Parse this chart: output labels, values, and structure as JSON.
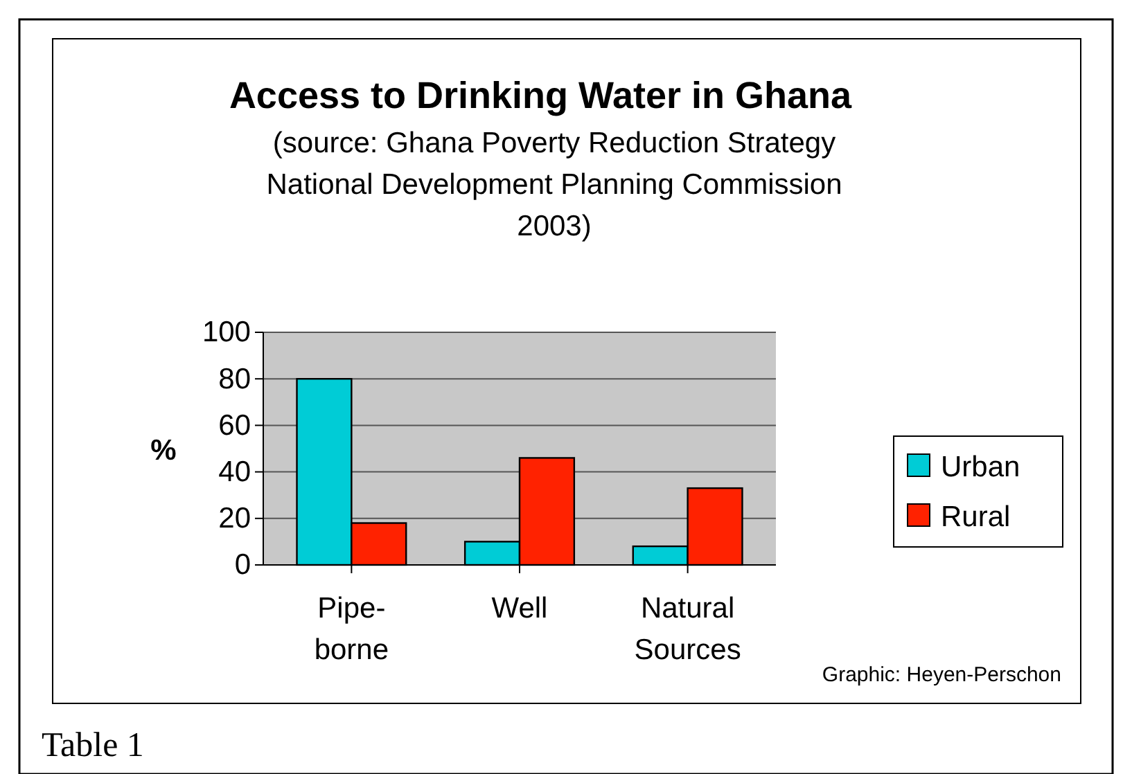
{
  "chart_data": {
    "type": "bar",
    "title": "Access to Drinking Water in Ghana",
    "subtitle": "(source: Ghana Poverty Reduction Strategy National Development Planning Commission 2003)",
    "ylabel": "%",
    "categories": [
      "Pipe-borne",
      "Well",
      "Natural Sources"
    ],
    "series": [
      {
        "name": "Urban",
        "color": "#00ccd6",
        "values": [
          80,
          10,
          8
        ]
      },
      {
        "name": "Rural",
        "color": "#ff2200",
        "values": [
          18,
          46,
          33
        ]
      }
    ],
    "ylim": [
      0,
      100
    ],
    "yticks": [
      0,
      20,
      40,
      60,
      80,
      100
    ],
    "grid": "y",
    "legend": "right",
    "annotations": [
      "Graphic: Heyen-Perschon",
      "Table 1"
    ]
  }
}
